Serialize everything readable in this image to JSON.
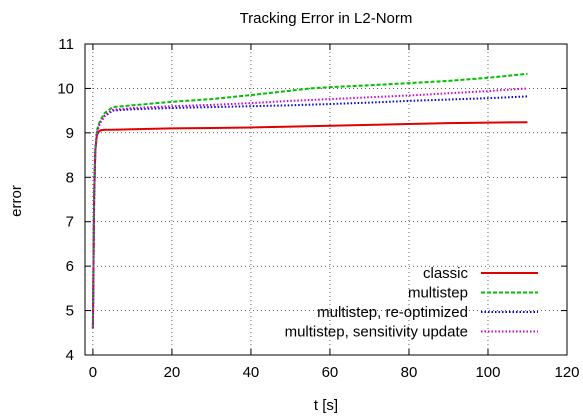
{
  "chart_data": {
    "type": "line",
    "title": "Tracking Error in L2-Norm",
    "xlabel": "t [s]",
    "ylabel": "error",
    "xlim": [
      -2,
      120
    ],
    "ylim": [
      4,
      11
    ],
    "xticks": [
      0,
      20,
      40,
      60,
      80,
      100,
      120
    ],
    "yticks": [
      4,
      5,
      6,
      7,
      8,
      9,
      10,
      11
    ],
    "grid": true,
    "legend_position": "bottom-right",
    "series": [
      {
        "name": "classic",
        "color": "#e00000",
        "dash": "solid",
        "x": [
          0,
          0.3,
          0.6,
          1,
          1.5,
          2,
          3,
          5,
          10,
          20,
          30,
          40,
          50,
          60,
          70,
          80,
          90,
          100,
          110
        ],
        "y": [
          4.6,
          7.5,
          8.6,
          8.95,
          9.03,
          9.06,
          9.07,
          9.07,
          9.08,
          9.1,
          9.11,
          9.12,
          9.14,
          9.16,
          9.18,
          9.2,
          9.22,
          9.23,
          9.24
        ]
      },
      {
        "name": "multistep",
        "color": "#00c000",
        "dash": "dashed",
        "x": [
          0,
          0.3,
          0.6,
          1,
          1.5,
          2,
          3,
          5,
          10,
          20,
          30,
          40,
          50,
          55,
          60,
          70,
          80,
          90,
          100,
          110
        ],
        "y": [
          4.6,
          7.5,
          8.6,
          9.05,
          9.2,
          9.3,
          9.45,
          9.58,
          9.62,
          9.7,
          9.76,
          9.85,
          9.95,
          10.0,
          10.03,
          10.07,
          10.12,
          10.17,
          10.24,
          10.33
        ]
      },
      {
        "name": "multistep, re-optimized",
        "color": "#0000e0",
        "dash": "dotted",
        "x": [
          0,
          0.3,
          0.6,
          1,
          1.5,
          2,
          3,
          5,
          10,
          20,
          30,
          40,
          50,
          60,
          70,
          80,
          90,
          100,
          110
        ],
        "y": [
          4.6,
          7.5,
          8.6,
          9.0,
          9.15,
          9.25,
          9.38,
          9.5,
          9.53,
          9.56,
          9.58,
          9.6,
          9.62,
          9.65,
          9.68,
          9.72,
          9.75,
          9.78,
          9.82
        ]
      },
      {
        "name": "multistep, sensitivity update",
        "color": "#d000d0",
        "dash": "dotted",
        "x": [
          0,
          0.3,
          0.6,
          1,
          1.5,
          2,
          3,
          5,
          10,
          20,
          30,
          40,
          50,
          60,
          70,
          80,
          90,
          100,
          110
        ],
        "y": [
          4.6,
          7.5,
          8.6,
          9.0,
          9.15,
          9.26,
          9.4,
          9.52,
          9.56,
          9.6,
          9.63,
          9.67,
          9.72,
          9.76,
          9.8,
          9.84,
          9.89,
          9.94,
          10.0
        ]
      }
    ]
  }
}
